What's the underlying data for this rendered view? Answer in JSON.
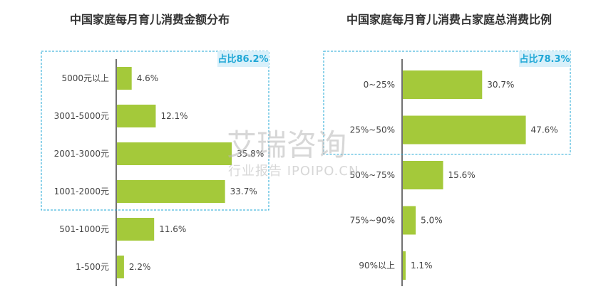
{
  "chart_data": [
    {
      "type": "bar",
      "orientation": "horizontal",
      "title": "中国家庭每月育儿消费金额分布",
      "categories": [
        "5000元以上",
        "3001-5000元",
        "2001-3000元",
        "1001-2000元",
        "501-1000元",
        "1-500元"
      ],
      "values": [
        4.6,
        12.1,
        35.8,
        33.7,
        11.6,
        2.2
      ],
      "value_labels": [
        "4.6%",
        "12.1%",
        "35.8%",
        "33.7%",
        "11.6%",
        "2.2%"
      ],
      "xlim": [
        0,
        40
      ],
      "highlight": {
        "categories": [
          "5000元以上",
          "3001-5000元",
          "2001-3000元",
          "1001-2000元"
        ],
        "label": "占比86.2%"
      }
    },
    {
      "type": "bar",
      "orientation": "horizontal",
      "title": "中国家庭每月育儿消费占家庭总消费比例",
      "categories": [
        "0~25%",
        "25%~50%",
        "50%~75%",
        "75%~90%",
        "90%以上"
      ],
      "values": [
        30.7,
        47.6,
        15.6,
        5.0,
        1.1
      ],
      "value_labels": [
        "30.7%",
        "47.6%",
        "15.6%",
        "5.0%",
        "1.1%"
      ],
      "xlim": [
        0,
        56
      ],
      "highlight": {
        "categories": [
          "0~25%",
          "25%~50%"
        ],
        "label": "占比78.3%"
      }
    }
  ],
  "colors": {
    "bar": "#a4c93a",
    "highlight": "#1fa7d6",
    "badge_bg": "#d8f0fa",
    "axis": "#444444"
  },
  "watermark": {
    "line1": "艾瑞咨询",
    "line2": "行业报告 IPOIPO.CN"
  }
}
